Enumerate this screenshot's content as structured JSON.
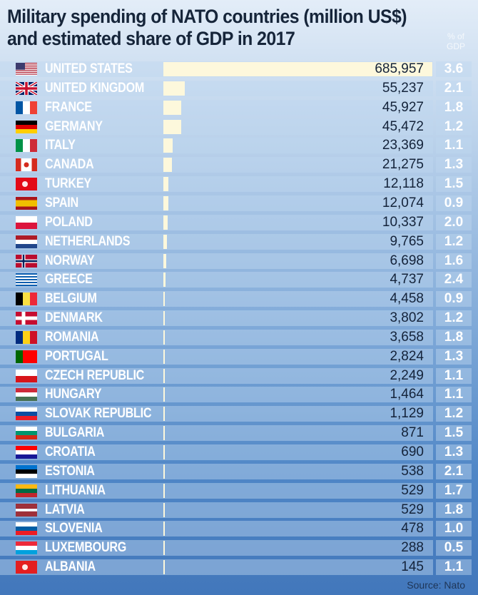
{
  "chart_data": {
    "type": "bar",
    "orientation": "horizontal",
    "title": "Military spending of NATO countries (million US$) and estimated share of GDP in 2017",
    "secondary_column_label": "% of GDP",
    "source": "Source: Nato",
    "categories": [
      "UNITED STATES",
      "UNITED KINGDOM",
      "FRANCE",
      "GERMANY",
      "ITALY",
      "CANADA",
      "TURKEY",
      "SPAIN",
      "POLAND",
      "NETHERLANDS",
      "NORWAY",
      "GREECE",
      "BELGIUM",
      "DENMARK",
      "ROMANIA",
      "PORTUGAL",
      "CZECH REPUBLIC",
      "HUNGARY",
      "SLOVAK REPUBLIC",
      "BULGARIA",
      "CROATIA",
      "ESTONIA",
      "LITHUANIA",
      "LATVIA",
      "SLOVENIA",
      "LUXEMBOURG",
      "ALBANIA"
    ],
    "values": [
      685957,
      55237,
      45927,
      45472,
      23369,
      21275,
      12118,
      12074,
      10337,
      9765,
      6698,
      4737,
      4458,
      3802,
      3658,
      2824,
      2249,
      1464,
      1129,
      871,
      690,
      538,
      529,
      529,
      478,
      288,
      145
    ],
    "value_labels": [
      "685,957",
      "55,237",
      "45,927",
      "45,472",
      "23,369",
      "21,275",
      "12,118",
      "12,074",
      "10,337",
      "9,765",
      "6,698",
      "4,737",
      "4,458",
      "3,802",
      "3,658",
      "2,824",
      "2,249",
      "1,464",
      "1,129",
      "871",
      "690",
      "538",
      "529",
      "529",
      "478",
      "288",
      "145"
    ],
    "gdp_share": [
      "3.6",
      "2.1",
      "1.8",
      "1.2",
      "1.1",
      "1.3",
      "1.5",
      "0.9",
      "2.0",
      "1.2",
      "1.6",
      "2.4",
      "0.9",
      "1.2",
      "1.8",
      "1.3",
      "1.1",
      "1.1",
      "1.2",
      "1.5",
      "1.3",
      "2.1",
      "1.7",
      "1.8",
      "1.0",
      "0.5",
      "1.1"
    ],
    "xlim": [
      0,
      685957
    ],
    "bar_color": "#fdf8dc"
  },
  "flags": [
    {
      "d": "us"
    },
    {
      "d": "uk"
    },
    {
      "d": "v",
      "c": [
        "#0055a4",
        "#ffffff",
        "#ef4135"
      ]
    },
    {
      "d": "h",
      "c": [
        "#000000",
        "#dd0000",
        "#ffce00"
      ]
    },
    {
      "d": "v",
      "c": [
        "#009246",
        "#ffffff",
        "#ce2b37"
      ]
    },
    {
      "d": "v3",
      "c": [
        "#d52b1e",
        "#ffffff",
        "#d52b1e"
      ]
    },
    {
      "d": "h",
      "c": [
        "#e30a17"
      ]
    },
    {
      "d": "h",
      "c": [
        "#aa151b",
        "#f1bf00",
        "#f1bf00",
        "#aa151b"
      ]
    },
    {
      "d": "h",
      "c": [
        "#ffffff",
        "#dc143c"
      ]
    },
    {
      "d": "h",
      "c": [
        "#ae1c28",
        "#ffffff",
        "#21468b"
      ]
    },
    {
      "d": "nordic",
      "c": [
        "#ba0c2f",
        "#ffffff",
        "#00205b"
      ]
    },
    {
      "d": "h",
      "c": [
        "#0d5eaf",
        "#ffffff",
        "#0d5eaf",
        "#ffffff",
        "#0d5eaf",
        "#ffffff",
        "#0d5eaf",
        "#ffffff",
        "#0d5eaf"
      ]
    },
    {
      "d": "v",
      "c": [
        "#000000",
        "#fae042",
        "#ed2939"
      ]
    },
    {
      "d": "nordic",
      "c": [
        "#c60c30",
        "#ffffff",
        "#ffffff"
      ]
    },
    {
      "d": "v",
      "c": [
        "#002b7f",
        "#fcd116",
        "#ce1126"
      ]
    },
    {
      "d": "v",
      "c": [
        "#006600",
        "#ff0000",
        "#ff0000"
      ]
    },
    {
      "d": "h",
      "c": [
        "#ffffff",
        "#d7141a"
      ]
    },
    {
      "d": "h",
      "c": [
        "#ce2939",
        "#ffffff",
        "#477050"
      ]
    },
    {
      "d": "h",
      "c": [
        "#ffffff",
        "#0b4ea2",
        "#ee1c25"
      ]
    },
    {
      "d": "h",
      "c": [
        "#ffffff",
        "#00966e",
        "#d62612"
      ]
    },
    {
      "d": "h",
      "c": [
        "#ff0000",
        "#ffffff",
        "#171796"
      ]
    },
    {
      "d": "h",
      "c": [
        "#0072ce",
        "#000000",
        "#ffffff"
      ]
    },
    {
      "d": "h",
      "c": [
        "#fdb913",
        "#006a44",
        "#c1272d"
      ]
    },
    {
      "d": "h",
      "c": [
        "#9e3039",
        "#9e3039",
        "#ffffff",
        "#9e3039",
        "#9e3039"
      ]
    },
    {
      "d": "h",
      "c": [
        "#ffffff",
        "#005da4",
        "#ed1c24"
      ]
    },
    {
      "d": "h",
      "c": [
        "#ed2939",
        "#ffffff",
        "#00a1de"
      ]
    },
    {
      "d": "h",
      "c": [
        "#e41e20"
      ]
    }
  ]
}
